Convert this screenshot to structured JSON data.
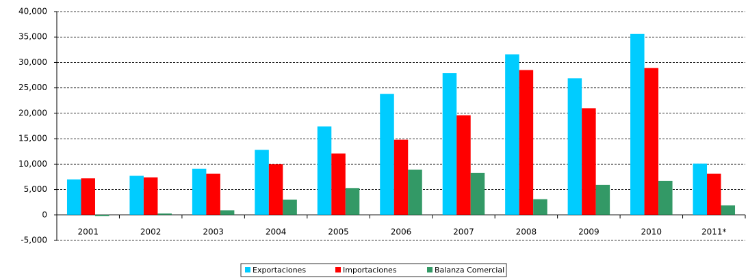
{
  "chart_data": {
    "type": "bar",
    "categories": [
      "2001",
      "2002",
      "2003",
      "2004",
      "2005",
      "2006",
      "2007",
      "2008",
      "2009",
      "2010",
      "2011*"
    ],
    "series": [
      {
        "name": "Exportaciones",
        "color": "#00ccff",
        "values": [
          7000,
          7700,
          9100,
          12800,
          17400,
          23800,
          27900,
          31600,
          26900,
          35600,
          10100
        ]
      },
      {
        "name": "Importaciones",
        "color": "#ff0000",
        "values": [
          7200,
          7400,
          8100,
          10000,
          12100,
          14800,
          19600,
          28500,
          21000,
          28900,
          8100
        ]
      },
      {
        "name": "Balanza Comercial",
        "color": "#339966",
        "values": [
          -200,
          300,
          900,
          3000,
          5300,
          8900,
          8300,
          3100,
          5900,
          6700,
          1900
        ]
      }
    ],
    "ylim": [
      -5000,
      40000
    ],
    "yticks": [
      {
        "value": -5000,
        "label": "-5,000"
      },
      0,
      {
        "value": 5000,
        "label": "5,000"
      },
      {
        "value": 10000,
        "label": "10,000"
      },
      {
        "value": 15000,
        "label": "15,000"
      },
      {
        "value": 20000,
        "label": "20,000"
      },
      {
        "value": 25000,
        "label": "25,000"
      },
      {
        "value": 30000,
        "label": "30,000"
      },
      {
        "value": 35000,
        "label": "35,000"
      },
      {
        "value": 40000,
        "label": "40,000"
      }
    ],
    "grid": true,
    "legend": "bottom"
  }
}
